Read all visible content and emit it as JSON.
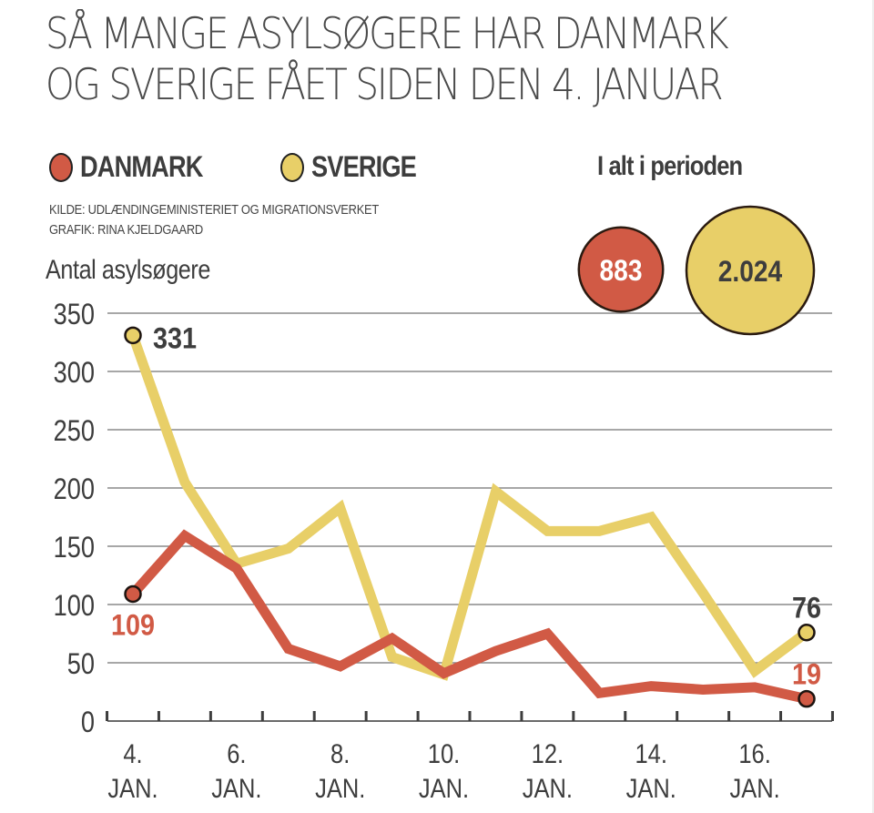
{
  "title_lines": [
    "SÅ MANGE ASYLSØGERE HAR DANMARK",
    "OG SVERIGE FÅET SIDEN DEN 4. JANUAR"
  ],
  "legend": [
    {
      "label": "DANMARK",
      "color": "#d15a45"
    },
    {
      "label": "SVERIGE",
      "color": "#e8cf68"
    }
  ],
  "totals": {
    "title": "I alt i perioden",
    "items": [
      {
        "series": "DANMARK",
        "value": 883,
        "label": "883",
        "color": "#d15a45",
        "text_color": "#ffffff"
      },
      {
        "series": "SVERIGE",
        "value": 2024,
        "label": "2.024",
        "color": "#e8cf68",
        "text_color": "#3d3d3d"
      }
    ]
  },
  "source_lines": [
    "KILDE: UDLÆNDINGEMINISTERIET OG MIGRATIONSVERKET",
    "GRAFIK: RINA KJELDGAARD"
  ],
  "chart_data": {
    "type": "line",
    "title": "SÅ MANGE ASYLSØGERE HAR DANMARK OG SVERIGE FÅET SIDEN DEN 4. JANUAR",
    "xlabel": "",
    "ylabel": "Antal asylsøgere",
    "x": [
      4,
      5,
      6,
      7,
      8,
      9,
      10,
      11,
      12,
      13,
      14,
      15,
      16,
      17
    ],
    "x_ticks": [
      {
        "value": 4,
        "line1": "4.",
        "line2": "JAN."
      },
      {
        "value": 6,
        "line1": "6.",
        "line2": "JAN."
      },
      {
        "value": 8,
        "line1": "8.",
        "line2": "JAN."
      },
      {
        "value": 10,
        "line1": "10.",
        "line2": "JAN."
      },
      {
        "value": 12,
        "line1": "12.",
        "line2": "JAN."
      },
      {
        "value": 14,
        "line1": "14.",
        "line2": "JAN."
      },
      {
        "value": 16,
        "line1": "16.",
        "line2": "JAN."
      }
    ],
    "ylim": [
      0,
      350
    ],
    "y_ticks": [
      0,
      50,
      100,
      150,
      200,
      250,
      300,
      350
    ],
    "grid": true,
    "legend_position": "top-left",
    "series": [
      {
        "name": "DANMARK",
        "color": "#d15a45",
        "values": [
          109,
          159,
          131,
          62,
          47,
          71,
          41,
          60,
          75,
          24,
          30,
          27,
          29,
          19
        ],
        "annotations": [
          {
            "index": 0,
            "label": "109",
            "color": "#d15a45",
            "position": "below"
          },
          {
            "index": 13,
            "label": "19",
            "color": "#d15a45",
            "position": "above"
          }
        ]
      },
      {
        "name": "SVERIGE",
        "color": "#e8cf68",
        "values": [
          331,
          205,
          135,
          148,
          183,
          55,
          40,
          197,
          163,
          163,
          175,
          110,
          43,
          76
        ],
        "annotations": [
          {
            "index": 0,
            "label": "331",
            "color": "#3d3d3d",
            "position": "right"
          },
          {
            "index": 13,
            "label": "76",
            "color": "#3d3d3d",
            "position": "above"
          }
        ]
      }
    ]
  }
}
